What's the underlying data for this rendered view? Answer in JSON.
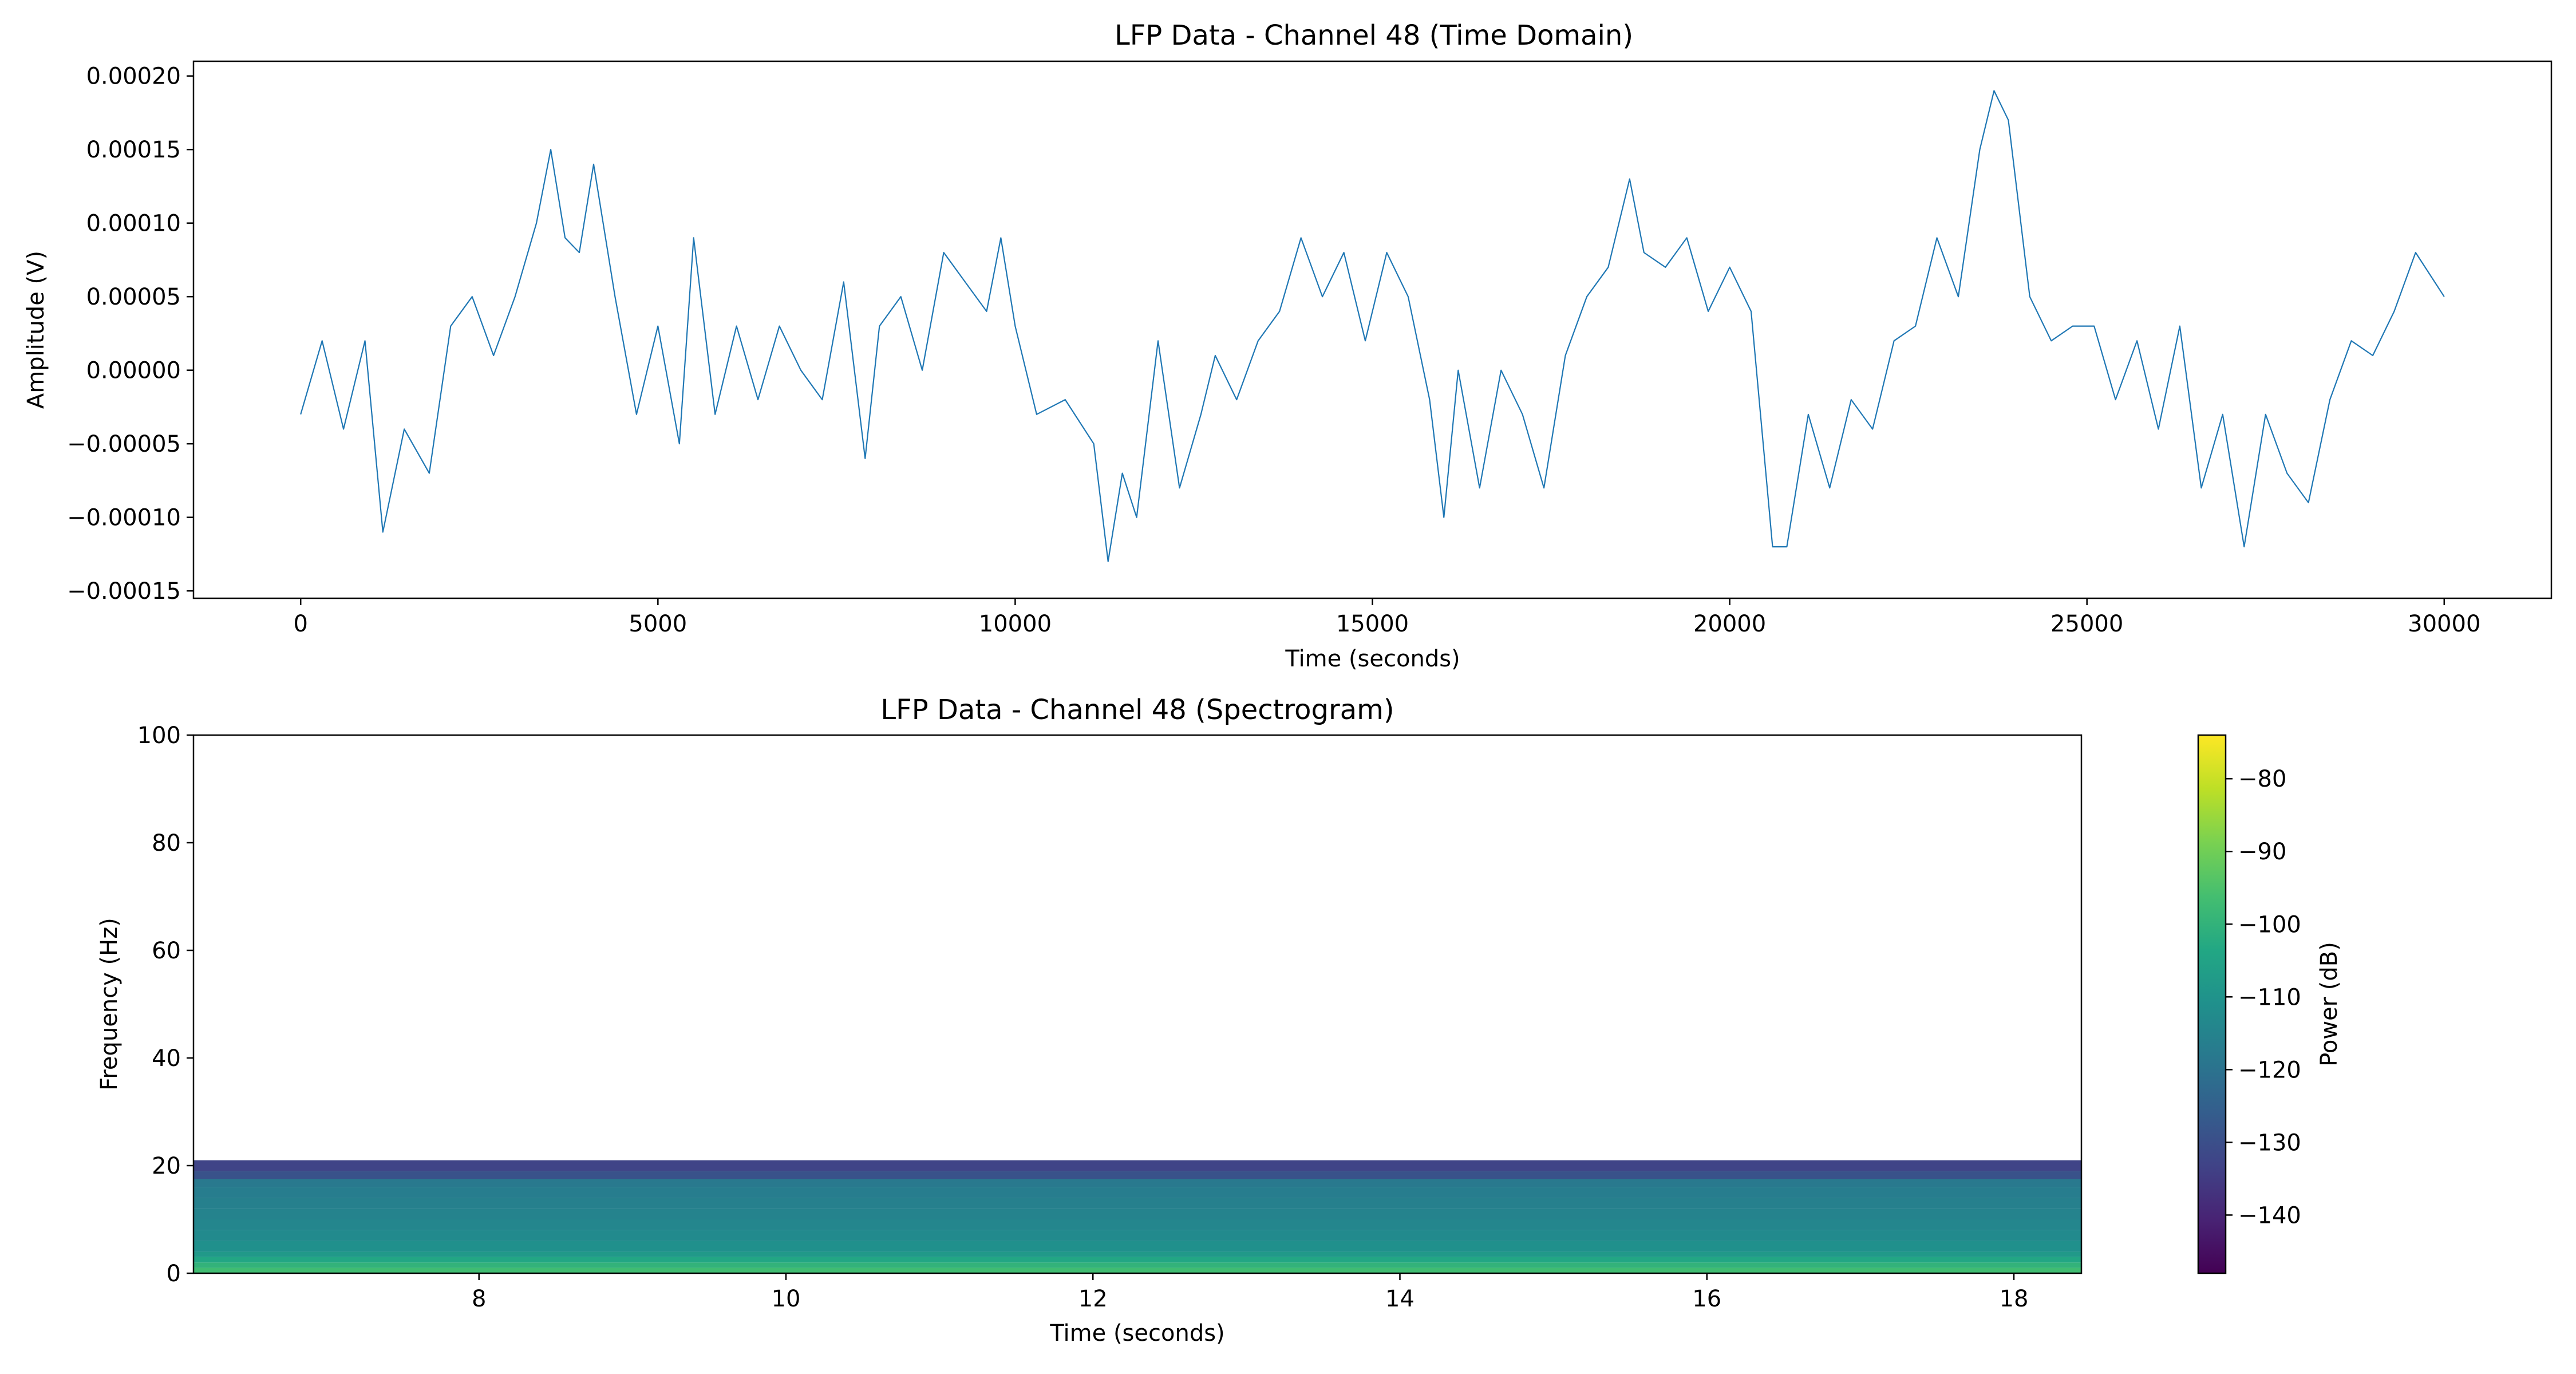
{
  "chart_data": [
    {
      "type": "line",
      "title": "LFP Data - Channel 48 (Time Domain)",
      "xlabel": "Time (seconds)",
      "ylabel": "Amplitude (V)",
      "xlim": [
        -1500,
        31500
      ],
      "ylim": [
        -0.000155,
        0.00021
      ],
      "xticks": [
        0,
        5000,
        10000,
        15000,
        20000,
        25000,
        30000
      ],
      "xtick_labels": [
        "0",
        "5000",
        "10000",
        "15000",
        "20000",
        "25000",
        "30000"
      ],
      "yticks": [
        -0.00015,
        -0.0001,
        -5e-05,
        0,
        5e-05,
        0.0001,
        0.00015,
        0.0002
      ],
      "ytick_labels": [
        "−0.00015",
        "−0.00010",
        "−0.00005",
        "0.00000",
        "0.00005",
        "0.00010",
        "0.00015",
        "0.00020"
      ],
      "line_color": "#1f77b4",
      "grid": false,
      "series": [
        {
          "x": [
            0,
            300,
            600,
            900,
            1150,
            1450,
            1800,
            2100,
            2400,
            2700,
            3000,
            3300,
            3500,
            3700,
            3900,
            4100,
            4400,
            4700,
            5000,
            5300,
            5500,
            5800,
            6100,
            6400,
            6700,
            7000,
            7300,
            7600,
            7900,
            8100,
            8400,
            8700,
            9000,
            9300,
            9600,
            9800,
            10000,
            10300,
            10700,
            11100,
            11300,
            11500,
            11700,
            12000,
            12300,
            12600,
            12800,
            13100,
            13400,
            13700,
            14000,
            14300,
            14600,
            14900,
            15200,
            15500,
            15800,
            16000,
            16200,
            16500,
            16800,
            17100,
            17400,
            17700,
            18000,
            18300,
            18600,
            18800,
            19100,
            19400,
            19700,
            20000,
            20300,
            20600,
            20800,
            21100,
            21400,
            21700,
            22000,
            22300,
            22600,
            22900,
            23200,
            23500,
            23700,
            23900,
            24200,
            24500,
            24800,
            25100,
            25400,
            25700,
            26000,
            26300,
            26600,
            26900,
            27200,
            27500,
            27800,
            28100,
            28400,
            28700,
            29000,
            29300,
            29600,
            30000
          ],
          "y": [
            -3e-05,
            2e-05,
            -4e-05,
            2e-05,
            -0.00011,
            -4e-05,
            -7e-05,
            3e-05,
            5e-05,
            1e-05,
            5e-05,
            0.0001,
            0.00015,
            9e-05,
            8e-05,
            0.00014,
            5e-05,
            -3e-05,
            3e-05,
            -5e-05,
            9e-05,
            -3e-05,
            3e-05,
            -2e-05,
            3e-05,
            0.0,
            -2e-05,
            6e-05,
            -6e-05,
            3e-05,
            5e-05,
            0.0,
            8e-05,
            6e-05,
            4e-05,
            9e-05,
            3e-05,
            -3e-05,
            -2e-05,
            -5e-05,
            -0.00013,
            -7e-05,
            -0.0001,
            2e-05,
            -8e-05,
            -3e-05,
            1e-05,
            -2e-05,
            2e-05,
            4e-05,
            9e-05,
            5e-05,
            8e-05,
            2e-05,
            8e-05,
            5e-05,
            -2e-05,
            -0.0001,
            0.0,
            -8e-05,
            0.0,
            -3e-05,
            -8e-05,
            1e-05,
            5e-05,
            7e-05,
            0.00013,
            8e-05,
            7e-05,
            9e-05,
            4e-05,
            7e-05,
            4e-05,
            -0.00012,
            -0.00012,
            -3e-05,
            -8e-05,
            -2e-05,
            -4e-05,
            2e-05,
            3e-05,
            9e-05,
            5e-05,
            0.00015,
            0.00019,
            0.00017,
            5e-05,
            2e-05,
            3e-05,
            3e-05,
            -2e-05,
            2e-05,
            -4e-05,
            3e-05,
            -8e-05,
            -3e-05,
            -0.00012,
            -3e-05,
            -7e-05,
            -9e-05,
            -2e-05,
            2e-05,
            1e-05,
            4e-05,
            8e-05,
            5e-05
          ]
        }
      ]
    },
    {
      "type": "heatmap",
      "title": "LFP Data - Channel 48 (Spectrogram)",
      "xlabel": "Time (seconds)",
      "ylabel": "Frequency (Hz)",
      "xlim": [
        6.14,
        18.44
      ],
      "ylim": [
        0,
        100
      ],
      "xticks": [
        8,
        10,
        12,
        14,
        16,
        18
      ],
      "xtick_labels": [
        "8",
        "10",
        "12",
        "14",
        "16",
        "18"
      ],
      "yticks": [
        0,
        20,
        40,
        60,
        80,
        100
      ],
      "ytick_labels": [
        "0",
        "20",
        "40",
        "60",
        "80",
        "100"
      ],
      "colormap": "viridis",
      "colorbar": {
        "label": "Power (dB)",
        "range": [
          -148,
          -74
        ],
        "ticks": [
          -80,
          -90,
          -100,
          -110,
          -120,
          -130,
          -140
        ],
        "tick_labels": [
          "−80",
          "−90",
          "−100",
          "−110",
          "−120",
          "−130",
          "−140"
        ]
      },
      "bands": [
        {
          "f0": 0,
          "f1": 1,
          "power_db": -97
        },
        {
          "f0": 1,
          "f1": 2,
          "power_db": -100
        },
        {
          "f0": 2,
          "f1": 3,
          "power_db": -104
        },
        {
          "f0": 3,
          "f1": 4,
          "power_db": -108
        },
        {
          "f0": 4,
          "f1": 6,
          "power_db": -111
        },
        {
          "f0": 6,
          "f1": 8,
          "power_db": -113
        },
        {
          "f0": 8,
          "f1": 10,
          "power_db": -114
        },
        {
          "f0": 10,
          "f1": 12,
          "power_db": -115
        },
        {
          "f0": 12,
          "f1": 14,
          "power_db": -116
        },
        {
          "f0": 14,
          "f1": 16,
          "power_db": -117
        },
        {
          "f0": 16,
          "f1": 17.5,
          "power_db": -118
        },
        {
          "f0": 17.5,
          "f1": 19,
          "power_db": -129
        },
        {
          "f0": 19,
          "f1": 21,
          "power_db": -133
        }
      ]
    }
  ]
}
